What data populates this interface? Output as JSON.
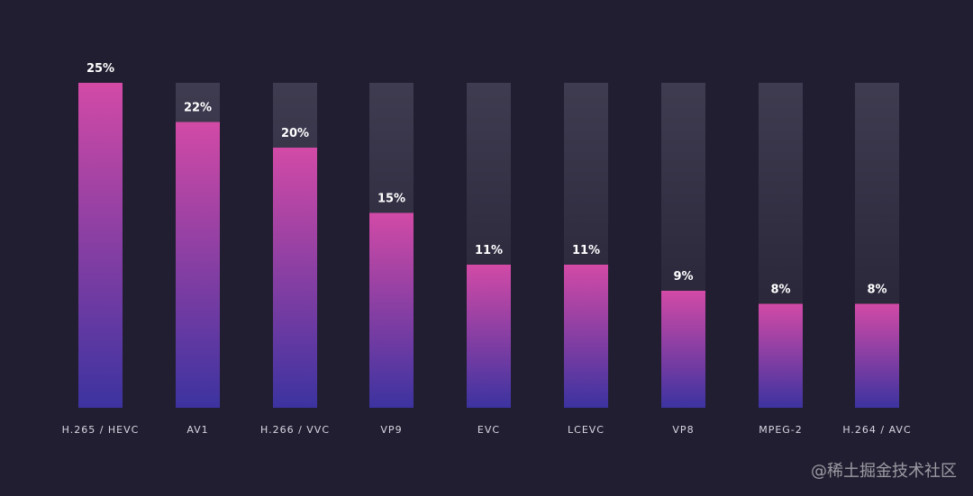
{
  "chart_data": {
    "type": "bar",
    "title": "",
    "xlabel": "",
    "ylabel": "",
    "ylim": [
      0,
      25
    ],
    "grid": false,
    "categories": [
      "H.265 / HEVC",
      "AV1",
      "H.266 / VVC",
      "VP9",
      "EVC",
      "LCEVC",
      "VP8",
      "MPEG-2",
      "H.264 / AVC"
    ],
    "values": [
      25,
      22,
      20,
      15,
      11,
      11,
      9,
      8,
      8
    ],
    "value_labels": [
      "25%",
      "22%",
      "20%",
      "15%",
      "11%",
      "11%",
      "9%",
      "8%",
      "8%"
    ],
    "colors": {
      "background": "#221e31",
      "track_top": "#3f3b50",
      "track_bottom": "#221e31",
      "bar_top": "#d24aa6",
      "bar_bottom": "#3c33a0",
      "label": "#d8d6e2",
      "value": "#ffffff"
    }
  },
  "watermark": "@稀土掘金技术社区"
}
